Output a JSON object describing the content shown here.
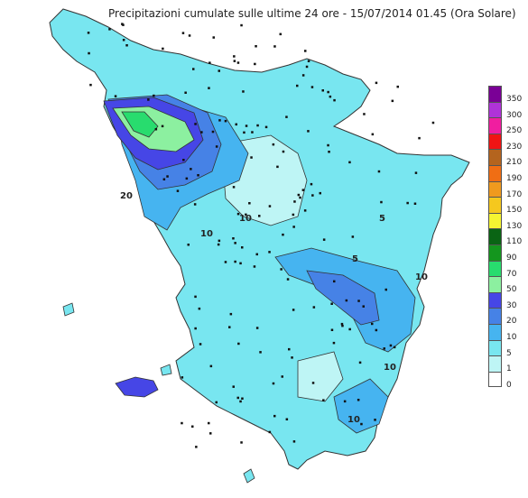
{
  "title": "Precipitazioni cumulate sulle ultime 24 ore - 15/07/2014 01.45 (Ora Solare)",
  "legend": {
    "classes": [
      {
        "label": "350",
        "color": "#7a0096"
      },
      {
        "label": "300",
        "color": "#b033d8"
      },
      {
        "label": "250",
        "color": "#f01ea0"
      },
      {
        "label": "230",
        "color": "#f01414"
      },
      {
        "label": "210",
        "color": "#b4641e"
      },
      {
        "label": "190",
        "color": "#f06e14"
      },
      {
        "label": "170",
        "color": "#f09a1e"
      },
      {
        "label": "150",
        "color": "#f5c81e"
      },
      {
        "label": "130",
        "color": "#f5f532"
      },
      {
        "label": "110",
        "color": "#0a6414"
      },
      {
        "label": "90",
        "color": "#14961e"
      },
      {
        "label": "70",
        "color": "#28dc6e"
      },
      {
        "label": "50",
        "color": "#8cf0a0"
      },
      {
        "label": "30",
        "color": "#4646e6"
      },
      {
        "label": "20",
        "color": "#4682e6"
      },
      {
        "label": "10",
        "color": "#46b4f0"
      },
      {
        "label": "5",
        "color": "#78e6f0"
      },
      {
        "label": "1",
        "color": "#bef5f5"
      },
      {
        "label": "0",
        "color": "#ffffff"
      }
    ]
  },
  "contour_labels": [
    "20",
    "10",
    "10",
    "5",
    "5",
    "10",
    "10",
    "10"
  ]
}
